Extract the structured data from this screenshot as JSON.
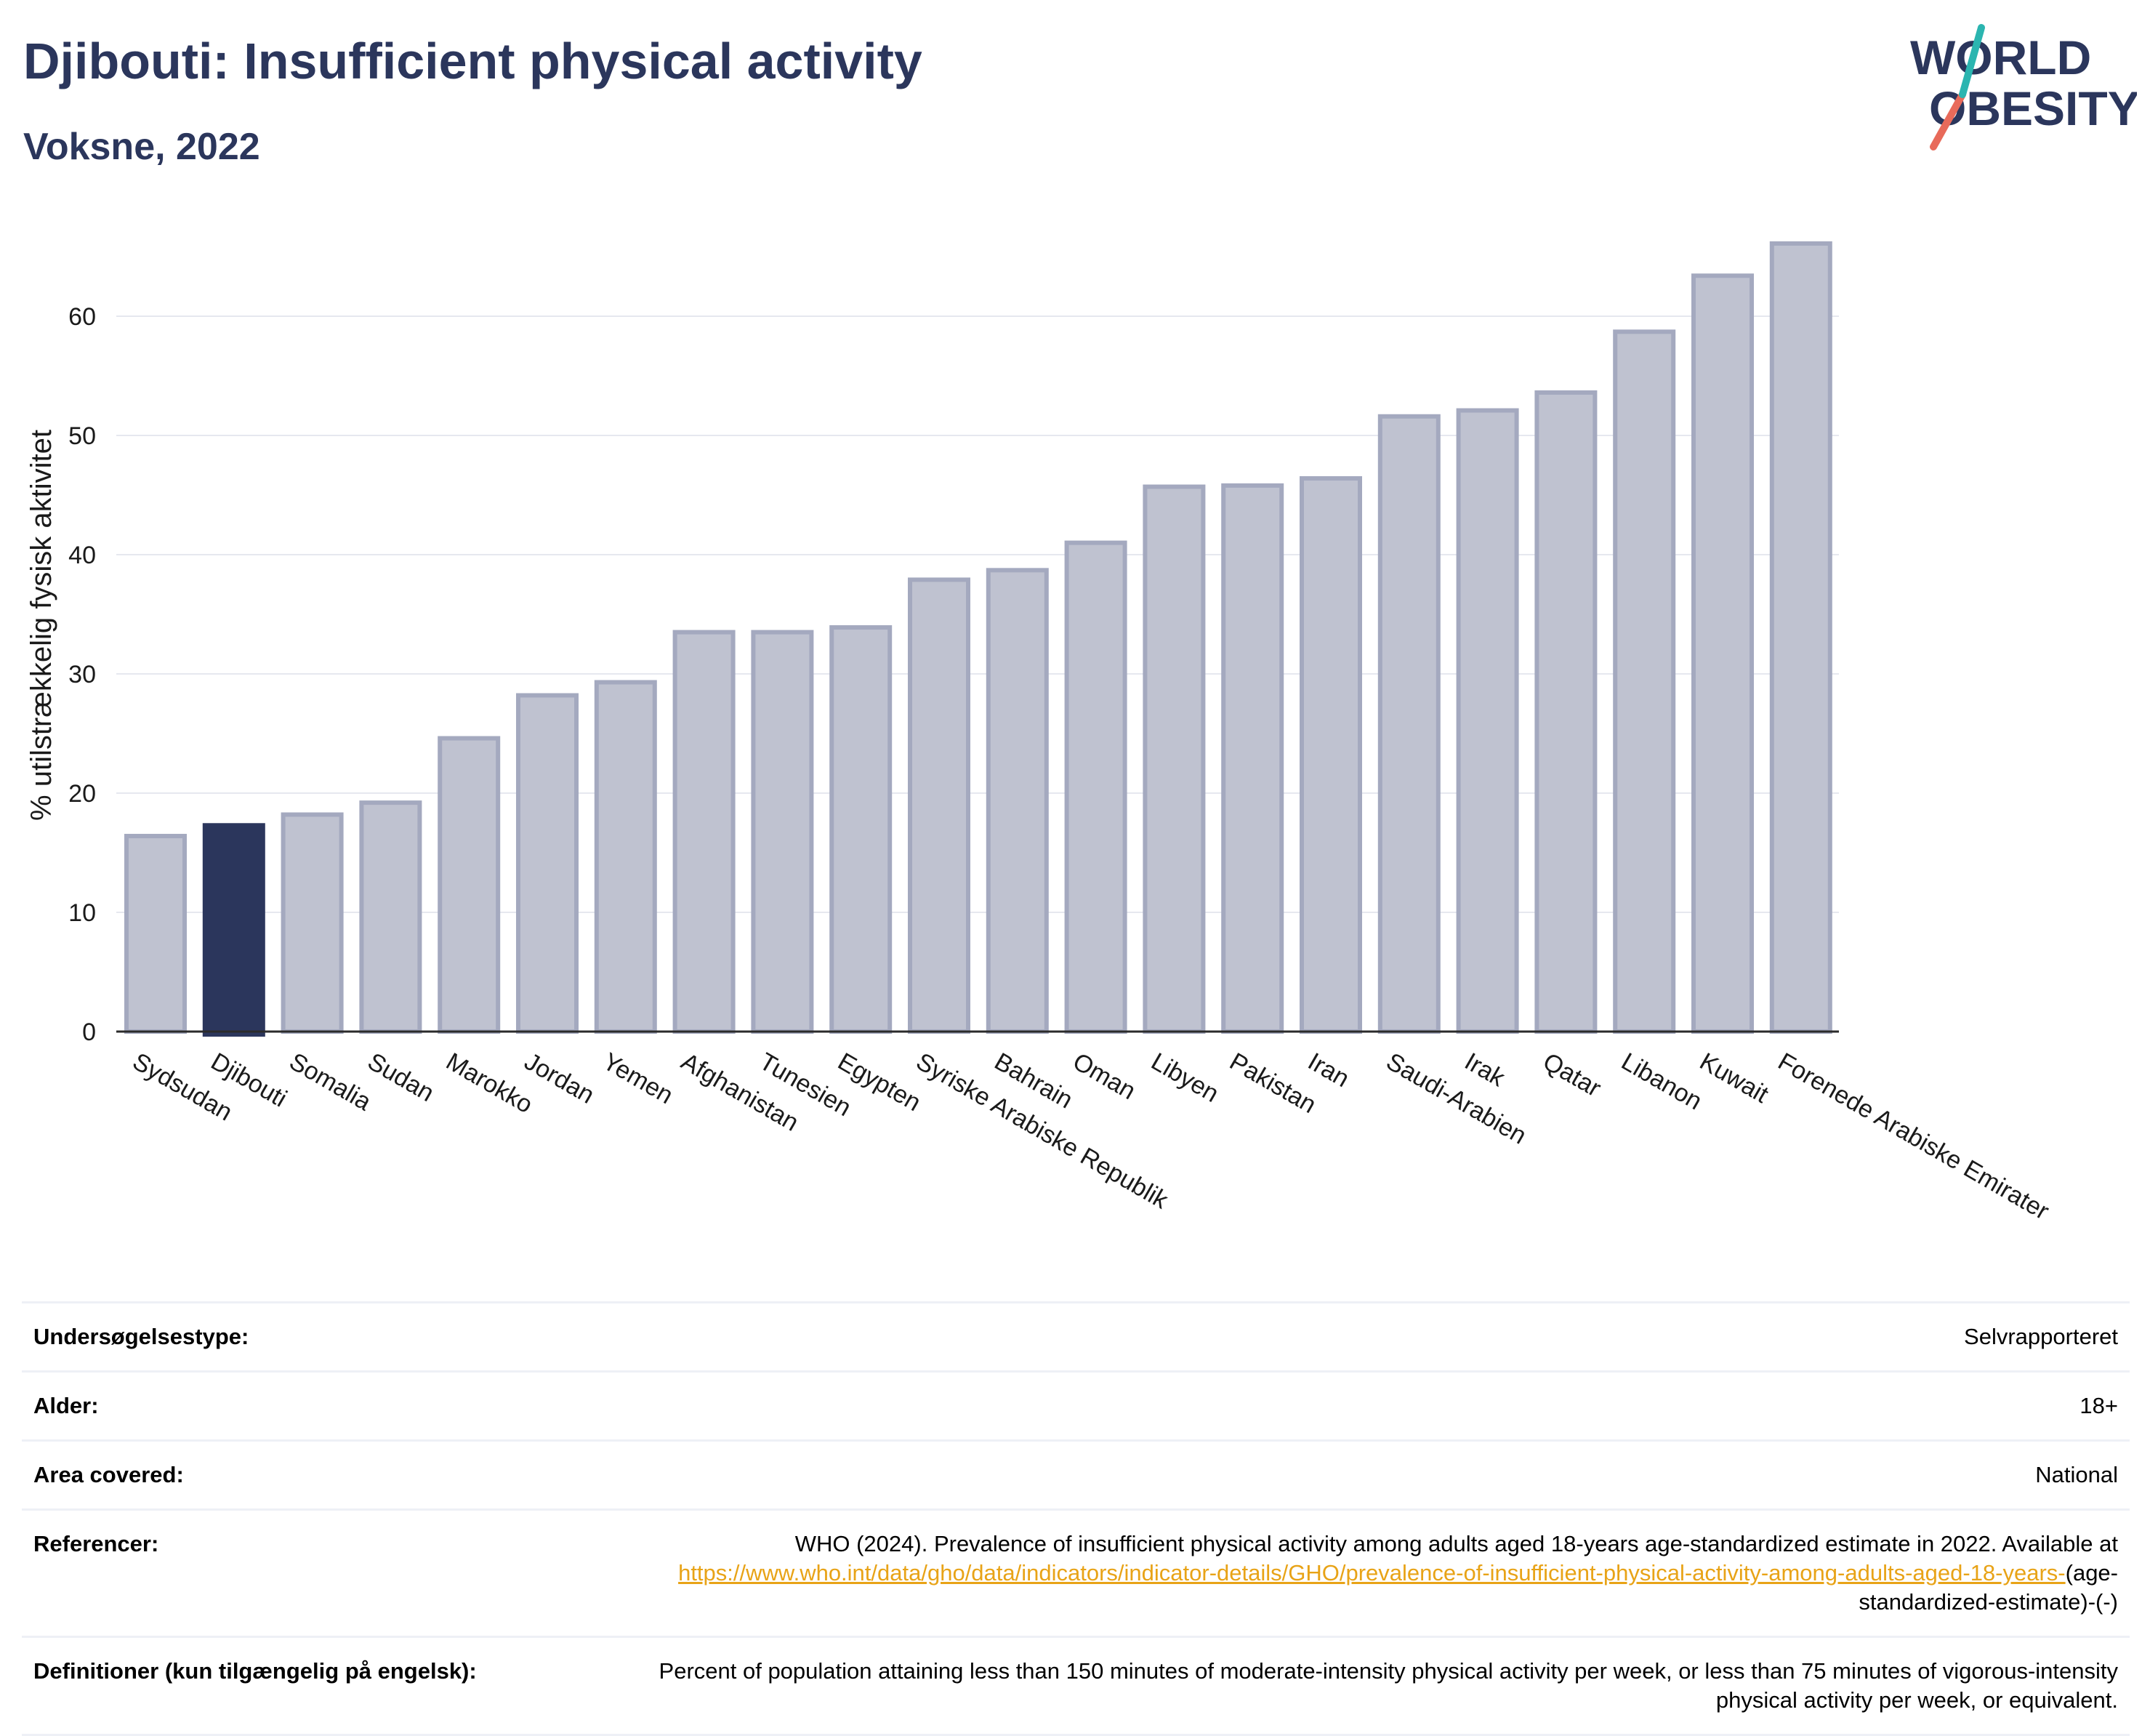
{
  "header": {
    "title": "Djibouti: Insufficient physical activity",
    "subtitle": "Voksne, 2022"
  },
  "logo": {
    "line1": "WORLD",
    "line2": "OBESITY",
    "name": "world-obesity-logo"
  },
  "colors": {
    "highlight": "#2b365c",
    "bar_fill": "#bfc2d0",
    "bar_stroke": "#a4a9bf",
    "link": "#e8a317"
  },
  "chart_data": {
    "type": "bar",
    "title": "Djibouti: Insufficient physical activity",
    "subtitle": "Voksne, 2022",
    "xlabel": "",
    "ylabel": "% utilstrækkelig fysisk aktivitet",
    "ylim": [
      0,
      67
    ],
    "yticks": [
      0,
      10,
      20,
      30,
      40,
      50,
      60
    ],
    "grid": true,
    "highlight": "Djibouti",
    "categories": [
      "Sydsudan",
      "Djibouti",
      "Somalia",
      "Sudan",
      "Marokko",
      "Jordan",
      "Yemen",
      "Afghanistan",
      "Tunesien",
      "Egypten",
      "Syriske Arabiske Republik",
      "Bahrain",
      "Oman",
      "Libyen",
      "Pakistan",
      "Iran",
      "Saudi-Arabien",
      "Irak",
      "Qatar",
      "Libanon",
      "Kuwait",
      "Forenede Arabiske Emirater"
    ],
    "values": [
      16.4,
      17.3,
      18.2,
      19.2,
      24.6,
      28.2,
      29.3,
      33.5,
      33.5,
      33.9,
      37.9,
      38.7,
      41.0,
      45.7,
      45.8,
      46.4,
      51.6,
      52.1,
      53.6,
      58.7,
      63.4,
      66.1
    ]
  },
  "info": {
    "rows": [
      {
        "key": "Undersøgelsestype:",
        "value": "Selvrapporteret"
      },
      {
        "key": "Alder:",
        "value": "18+"
      },
      {
        "key": "Area covered:",
        "value": "National"
      }
    ],
    "reference": {
      "key": "Referencer:",
      "text": "WHO (2024). Prevalence of insufficient physical activity among adults aged 18-years age-standardized estimate in 2022. Available at ",
      "link": "https://www.who.int/data/gho/data/indicators/indicator-details/GHO/prevalence-of-insufficient-physical-activity-among-adults-aged-18-years-",
      "suffix": "(age-standardized-estimate)-(-)"
    },
    "definition": {
      "key": "Definitioner (kun tilgængelig på engelsk):",
      "value": "Percent of population attaining less than 150 minutes of moderate-intensity physical activity per week, or less than 75 minutes of vigorous-intensity physical activity per week, or equivalent."
    }
  }
}
